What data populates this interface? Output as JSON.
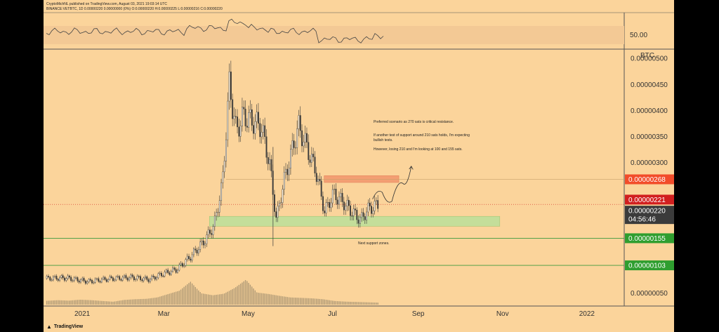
{
  "header": {
    "line1": "CryptoMichNL published on TradingView.com, August 03, 2021 19:03:14 UTC",
    "line2": "BINANCE:VETBTC, 1D  0.00000220  0.00000000 (0%)  O:0.00000220  H:0.00000225  L:0.00000216  C:0.00000220"
  },
  "footer": {
    "brand": "TradingView",
    "logo_icon": "tradingview-logo-icon"
  },
  "colors": {
    "background": "#fbd49b",
    "candle": "#3a3a3a",
    "volume": "#b09a76",
    "support_zone": "#bfe09a",
    "resistance_zone": "#f39a6f",
    "label_red": "#f24c2a",
    "label_darkred": "#d11f1f",
    "label_dark": "#3b3b3b",
    "label_green": "#2f9e2f",
    "support_line": "#3d9a3d"
  },
  "chart_data": {
    "type": "candlestick",
    "symbol": "BINANCE:VETBTC",
    "interval": "1D",
    "currency_label": "BTC",
    "x_ticks": [
      "2021",
      "Mar",
      "May",
      "Jul",
      "Sep",
      "Nov",
      "2022"
    ],
    "y_ticks": [
      "0.00000500",
      "0.00000450",
      "0.00000400",
      "0.00000350",
      "0.00000300",
      "0.00000050"
    ],
    "ylim": [
      2.5e-07,
      5.15e-06
    ],
    "price_labels": [
      {
        "value": 2.68e-06,
        "text": "0.00000268",
        "kind": "resistance"
      },
      {
        "value": 2.21e-06,
        "text": "0.00000221",
        "kind": "prior_close"
      },
      {
        "value": 2.2e-06,
        "text": "0.00000220",
        "kind": "last_price",
        "countdown": "04:56:46"
      },
      {
        "value": 1.55e-06,
        "text": "0.00000155",
        "kind": "support"
      },
      {
        "value": 1.03e-06,
        "text": "0.00000103",
        "kind": "support"
      }
    ],
    "zones": [
      {
        "kind": "resistance",
        "from": 2.62e-06,
        "to": 2.75e-06,
        "start": "2021-06-25",
        "end": "2021-08-18"
      },
      {
        "kind": "support",
        "from": 1.78e-06,
        "to": 1.97e-06,
        "start": "2021-04-03",
        "end": "2021-10-30"
      }
    ],
    "horizontal_lines": [
      2.68e-06,
      2.2e-06,
      1.55e-06,
      1.03e-06
    ],
    "annotations": [
      "Preferred scenario as 270 sats is critical resistance.",
      "If another test of support around 210 sats holds, I'm expecting bullish tests.",
      "However, losing 210 and I'm looking at 100 and 155 sats.",
      "Next support zones."
    ],
    "rsi": {
      "label": "50.00",
      "level": 50
    },
    "projection": [
      {
        "date": "2021-07-30",
        "value": 2.3e-06
      },
      {
        "date": "2021-08-06",
        "value": 2.43e-06
      },
      {
        "date": "2021-08-13",
        "value": 2.26e-06
      },
      {
        "date": "2021-08-21",
        "value": 2.6e-06
      },
      {
        "date": "2021-08-27",
        "value": 2.93e-06
      }
    ],
    "closes": [
      {
        "date": "2020-12-06",
        "value": 7.8e-07
      },
      {
        "date": "2020-12-20",
        "value": 7.9e-07
      },
      {
        "date": "2021-01-05",
        "value": 7.2e-07
      },
      {
        "date": "2021-01-20",
        "value": 7.7e-07
      },
      {
        "date": "2021-02-05",
        "value": 8e-07
      },
      {
        "date": "2021-02-18",
        "value": 7.6e-07
      },
      {
        "date": "2021-02-28",
        "value": 8.7e-07
      },
      {
        "date": "2021-03-10",
        "value": 9.5e-07
      },
      {
        "date": "2021-03-20",
        "value": 1.2e-06
      },
      {
        "date": "2021-03-30",
        "value": 1.5e-06
      },
      {
        "date": "2021-04-06",
        "value": 1.8e-06
      },
      {
        "date": "2021-04-12",
        "value": 2.6e-06
      },
      {
        "date": "2021-04-17",
        "value": 4.5e-06
      },
      {
        "date": "2021-04-22",
        "value": 3.6e-06
      },
      {
        "date": "2021-04-27",
        "value": 3.9e-06
      },
      {
        "date": "2021-05-03",
        "value": 3.8e-06
      },
      {
        "date": "2021-05-10",
        "value": 3.7e-06
      },
      {
        "date": "2021-05-16",
        "value": 3e-06
      },
      {
        "date": "2021-05-21",
        "value": 1.9e-06
      },
      {
        "date": "2021-05-26",
        "value": 2.6e-06
      },
      {
        "date": "2021-06-01",
        "value": 3.2e-06
      },
      {
        "date": "2021-06-06",
        "value": 3.7e-06
      },
      {
        "date": "2021-06-12",
        "value": 3.3e-06
      },
      {
        "date": "2021-06-19",
        "value": 2.8e-06
      },
      {
        "date": "2021-06-25",
        "value": 2.05e-06
      },
      {
        "date": "2021-07-01",
        "value": 2.4e-06
      },
      {
        "date": "2021-07-08",
        "value": 2.25e-06
      },
      {
        "date": "2021-07-15",
        "value": 2.05e-06
      },
      {
        "date": "2021-07-21",
        "value": 1.9e-06
      },
      {
        "date": "2021-07-26",
        "value": 2.1e-06
      },
      {
        "date": "2021-08-03",
        "value": 2.2e-06
      }
    ],
    "volume_relative": [
      0.1,
      0.12,
      0.11,
      0.14,
      0.13,
      0.11,
      0.09,
      0.15,
      0.18,
      0.2,
      0.26,
      0.4,
      0.55,
      0.95,
      0.48,
      0.38,
      0.42,
      0.62,
      0.88,
      0.41,
      0.35,
      0.28,
      0.22,
      0.2,
      0.18,
      0.15,
      0.1,
      0.08,
      0.07,
      0.06,
      0.05
    ]
  }
}
